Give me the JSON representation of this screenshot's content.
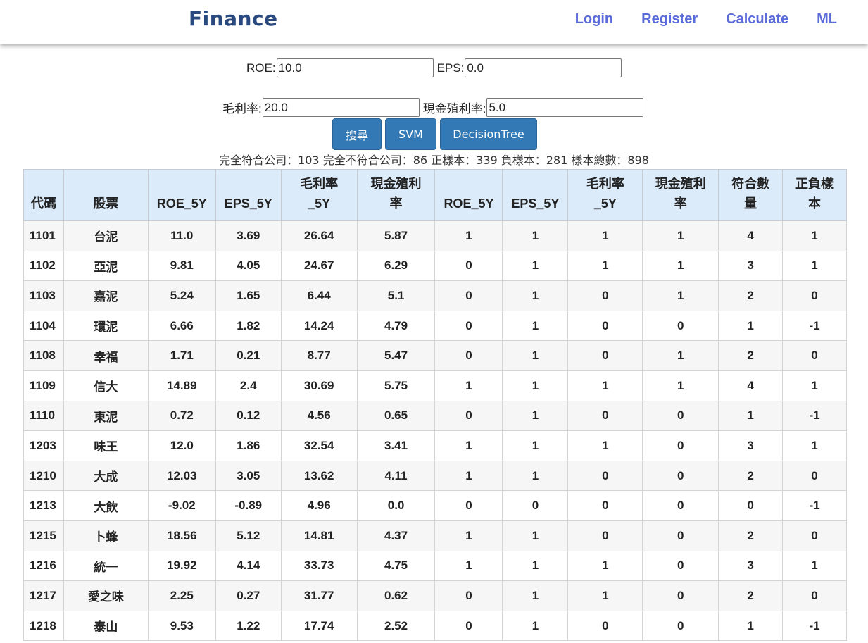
{
  "brand": "Finance",
  "nav": [
    "Login",
    "Register",
    "Calculate",
    "ML"
  ],
  "filters": {
    "roe": {
      "label": "ROE:",
      "value": "10.0"
    },
    "eps": {
      "label": "EPS:",
      "value": "0.0"
    },
    "gross_margin": {
      "label": "毛利率:",
      "value": "20.0"
    },
    "cash_yield": {
      "label": "現金殖利率:",
      "value": "5.0"
    }
  },
  "buttons": [
    "搜尋",
    "SVM",
    "DecisionTree"
  ],
  "summary": "完全符合公司：103 完全不符合公司：86 正樣本：339 負樣本：281 樣本總數：898",
  "table": {
    "headers": [
      "代碼",
      "股票",
      "ROE_5Y",
      "EPS_5Y",
      "毛利率\n_5Y",
      "現金殖利\n率",
      "ROE_5Y",
      "EPS_5Y",
      "毛利率\n_5Y",
      "現金殖利\n率",
      "符合數\n量",
      "正負樣\n本"
    ],
    "rows": [
      [
        "1101",
        "台泥",
        "11.0",
        "3.69",
        "26.64",
        "5.87",
        "1",
        "1",
        "1",
        "1",
        "4",
        "1"
      ],
      [
        "1102",
        "亞泥",
        "9.81",
        "4.05",
        "24.67",
        "6.29",
        "0",
        "1",
        "1",
        "1",
        "3",
        "1"
      ],
      [
        "1103",
        "嘉泥",
        "5.24",
        "1.65",
        "6.44",
        "5.1",
        "0",
        "1",
        "0",
        "1",
        "2",
        "0"
      ],
      [
        "1104",
        "環泥",
        "6.66",
        "1.82",
        "14.24",
        "4.79",
        "0",
        "1",
        "0",
        "0",
        "1",
        "-1"
      ],
      [
        "1108",
        "幸福",
        "1.71",
        "0.21",
        "8.77",
        "5.47",
        "0",
        "1",
        "0",
        "1",
        "2",
        "0"
      ],
      [
        "1109",
        "信大",
        "14.89",
        "2.4",
        "30.69",
        "5.75",
        "1",
        "1",
        "1",
        "1",
        "4",
        "1"
      ],
      [
        "1110",
        "東泥",
        "0.72",
        "0.12",
        "4.56",
        "0.65",
        "0",
        "1",
        "0",
        "0",
        "1",
        "-1"
      ],
      [
        "1203",
        "味王",
        "12.0",
        "1.86",
        "32.54",
        "3.41",
        "1",
        "1",
        "1",
        "0",
        "3",
        "1"
      ],
      [
        "1210",
        "大成",
        "12.03",
        "3.05",
        "13.62",
        "4.11",
        "1",
        "1",
        "0",
        "0",
        "2",
        "0"
      ],
      [
        "1213",
        "大飲",
        "-9.02",
        "-0.89",
        "4.96",
        "0.0",
        "0",
        "0",
        "0",
        "0",
        "0",
        "-1"
      ],
      [
        "1215",
        "卜蜂",
        "18.56",
        "5.12",
        "14.81",
        "4.37",
        "1",
        "1",
        "0",
        "0",
        "2",
        "0"
      ],
      [
        "1216",
        "統一",
        "19.92",
        "4.14",
        "33.73",
        "4.75",
        "1",
        "1",
        "1",
        "0",
        "3",
        "1"
      ],
      [
        "1217",
        "愛之味",
        "2.25",
        "0.27",
        "31.77",
        "0.62",
        "0",
        "1",
        "1",
        "0",
        "2",
        "0"
      ],
      [
        "1218",
        "泰山",
        "9.53",
        "1.22",
        "17.74",
        "2.52",
        "0",
        "1",
        "0",
        "0",
        "1",
        "-1"
      ]
    ]
  }
}
